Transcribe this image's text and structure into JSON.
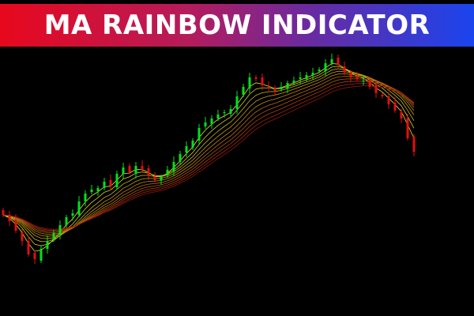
{
  "banner": {
    "title": "MA RAINBOW INDICATOR",
    "gradient": [
      "#e8081c",
      "#1a44ee"
    ]
  },
  "chart_data": {
    "type": "candlestick",
    "title": "MA RAINBOW INDICATOR",
    "xlabel": "",
    "ylabel": "",
    "grid": false,
    "background": "#000000",
    "bull_color": "#00e020",
    "bear_color": "#e01010",
    "ma_colors": [
      "#e8e830",
      "#d8d020",
      "#c8b818",
      "#c8a010",
      "#c08810",
      "#b87010",
      "#b05810",
      "#a84010",
      "#a02810",
      "#901810"
    ],
    "ma_periods": [
      3,
      5,
      7,
      9,
      11,
      13,
      15,
      17,
      19,
      21
    ],
    "closes": [
      128,
      120,
      108,
      95,
      78,
      72,
      85,
      95,
      105,
      115,
      125,
      130,
      145,
      155,
      160,
      162,
      170,
      165,
      180,
      188,
      182,
      190,
      185,
      178,
      172,
      176,
      185,
      195,
      205,
      215,
      222,
      238,
      245,
      250,
      255,
      258,
      262,
      278,
      290,
      302,
      300,
      292,
      288,
      285,
      290,
      295,
      298,
      302,
      305,
      308,
      312,
      320,
      325,
      318,
      308,
      302,
      300,
      298,
      290,
      282,
      278,
      268,
      260,
      250,
      225,
      208
    ]
  }
}
